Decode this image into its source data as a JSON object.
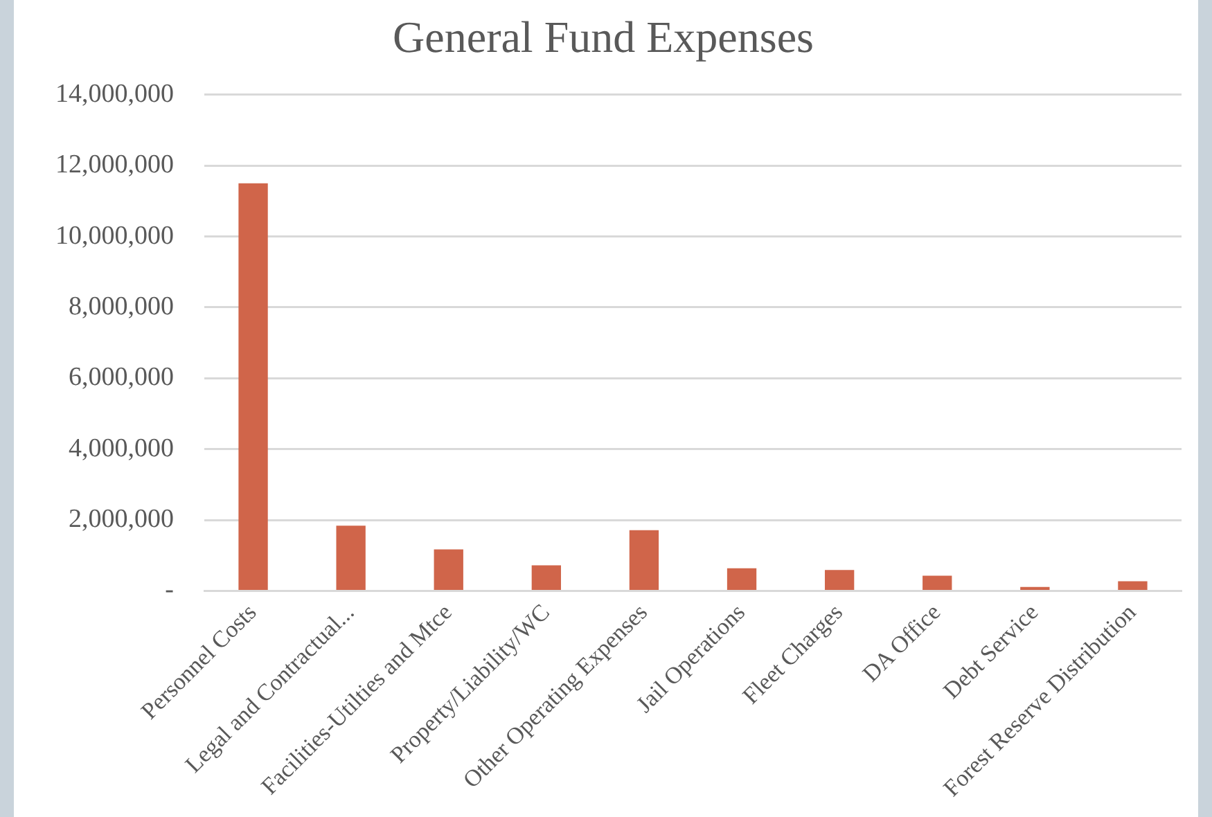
{
  "chart_data": {
    "type": "bar",
    "title": "General Fund Expenses",
    "categories": [
      "Personnel Costs",
      "Legal and Contractual...",
      "Facilities-Utilties and Mtce",
      "Property/Liability/WC",
      "Other Operating Expenses",
      "Jail Operations",
      "Fleet Charges",
      "DA Office",
      "Debt Service",
      "Forest Reserve Distribution"
    ],
    "values": [
      11500000,
      1840000,
      1170000,
      720000,
      1710000,
      640000,
      590000,
      430000,
      110000,
      270000
    ],
    "color": "#d0654a",
    "ylim": [
      0,
      14000000
    ],
    "yticks": [
      {
        "value": 0,
        "label": "-"
      },
      {
        "value": 2000000,
        "label": "2,000,000"
      },
      {
        "value": 4000000,
        "label": "4,000,000"
      },
      {
        "value": 6000000,
        "label": "6,000,000"
      },
      {
        "value": 8000000,
        "label": "8,000,000"
      },
      {
        "value": 10000000,
        "label": "10,000,000"
      },
      {
        "value": 12000000,
        "label": "12,000,000"
      },
      {
        "value": 14000000,
        "label": "14,000,000"
      }
    ],
    "grid": "y",
    "legend": false
  }
}
